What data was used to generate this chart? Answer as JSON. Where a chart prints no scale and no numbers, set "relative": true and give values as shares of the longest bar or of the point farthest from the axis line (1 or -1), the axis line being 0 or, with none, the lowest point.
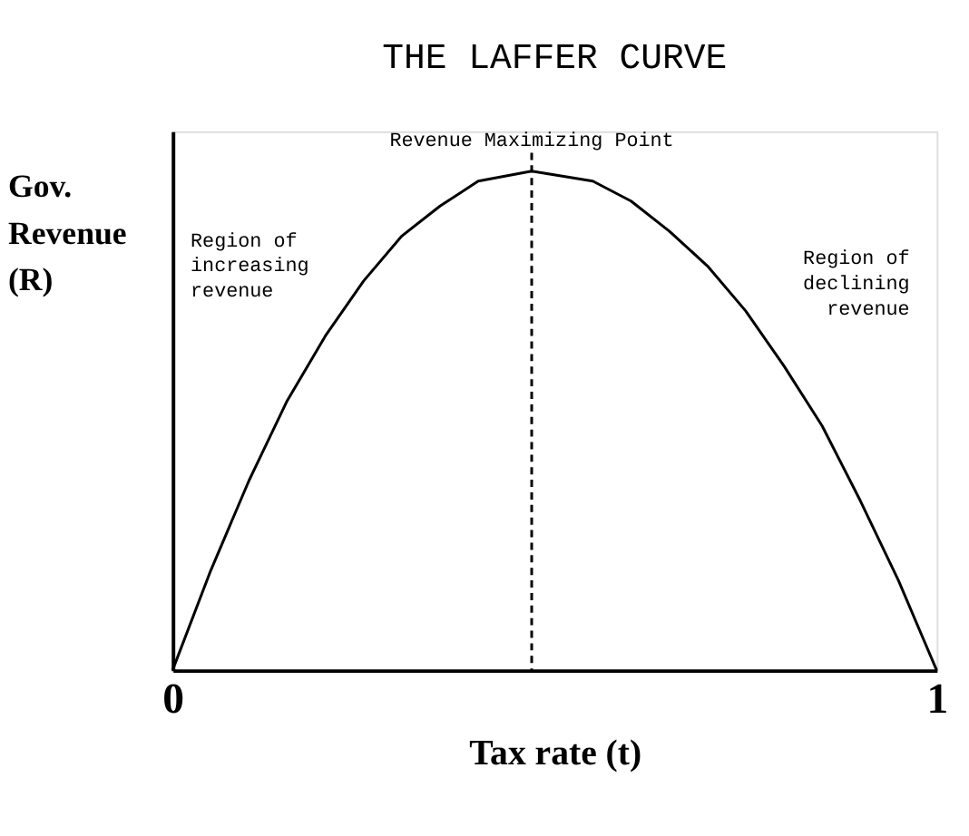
{
  "chart_data": {
    "type": "line",
    "title": "THE LAFFER CURVE",
    "xlabel": "Tax rate (t)",
    "ylabel": "Gov. Revenue (R)",
    "relative": true,
    "x": [
      0,
      0.05,
      0.1,
      0.15,
      0.2,
      0.25,
      0.3,
      0.35,
      0.4,
      0.47,
      0.55,
      0.6,
      0.65,
      0.7,
      0.75,
      0.8,
      0.85,
      0.9,
      0.95,
      1
    ],
    "series": [
      {
        "color": "#000000",
        "values": [
          0,
          0.2,
          0.38,
          0.54,
          0.67,
          0.78,
          0.87,
          0.93,
          0.98,
          1,
          0.98,
          0.94,
          0.88,
          0.81,
          0.72,
          0.61,
          0.49,
          0.34,
          0.18,
          0
        ]
      }
    ],
    "xlim": [
      0,
      1
    ],
    "xticks": [
      0,
      1
    ],
    "ref_lines": [
      {
        "axis": "x",
        "value": 0.47,
        "label": "Revenue Maximizing Point",
        "color": "#000000",
        "line_style": "dashed"
      }
    ],
    "annotations": [
      "Region of increasing revenue",
      "Region of declining revenue"
    ],
    "grid": false,
    "marker": "none",
    "line_style": "solid"
  }
}
